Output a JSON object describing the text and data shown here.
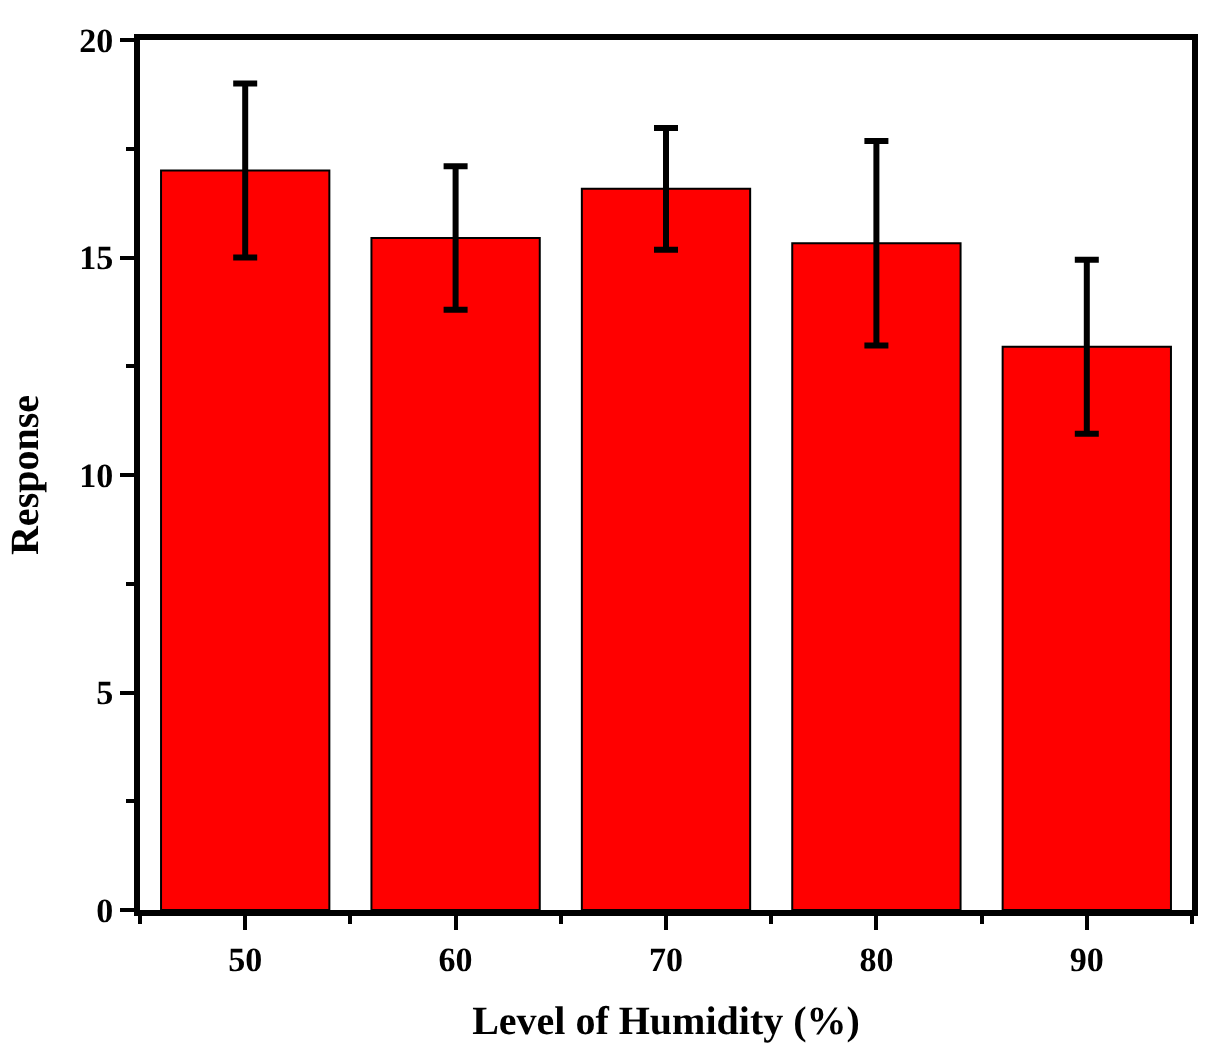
{
  "chart_data": {
    "type": "bar",
    "xlabel": "Level of Humidity (%)",
    "ylabel": "Response",
    "x": [
      50,
      60,
      70,
      80,
      90
    ],
    "values": [
      17.0,
      15.45,
      16.58,
      15.33,
      12.95
    ],
    "errors": [
      2.0,
      1.65,
      1.4,
      2.35,
      2.0
    ],
    "color": "#ff0000",
    "xlim": [
      45,
      95
    ],
    "xticks": [
      50,
      60,
      70,
      80,
      90
    ],
    "ylim": [
      0,
      20
    ],
    "yticks": [
      0,
      5,
      10,
      15,
      20
    ]
  }
}
